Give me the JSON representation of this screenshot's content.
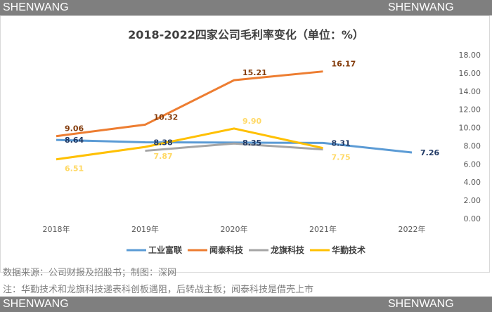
{
  "watermark": "SHENWANG",
  "chart_data": {
    "type": "line",
    "title": "2018-2022四家公司毛利率变化（单位：%）",
    "categories": [
      "2018年",
      "2019年",
      "2020年",
      "2021年",
      "2022年"
    ],
    "ylim": [
      0,
      18
    ],
    "yticks": [
      "0.00",
      "2.00",
      "4.00",
      "6.00",
      "8.00",
      "10.00",
      "12.00",
      "14.00",
      "16.00",
      "18.00"
    ],
    "y_axis_position": "right",
    "grid": false,
    "legend": "bottom",
    "series": [
      {
        "name": "工业富联",
        "color": "#5b9bd5",
        "labelColor": "#1f3864",
        "values": [
          8.64,
          8.38,
          8.35,
          8.31,
          7.26
        ],
        "labels": true
      },
      {
        "name": "闻泰科技",
        "color": "#ed7d31",
        "labelColor": "#843c0c",
        "values": [
          9.06,
          10.32,
          15.21,
          16.17,
          null
        ],
        "labels": true
      },
      {
        "name": "龙旗科技",
        "color": "#a5a5a5",
        "labelColor": "#7f7f7f",
        "values": [
          null,
          7.45,
          8.25,
          7.6,
          null
        ],
        "labels": false
      },
      {
        "name": "华勤技术",
        "color": "#ffc000",
        "labelColor": "#ffd966",
        "values": [
          6.51,
          7.87,
          9.9,
          7.75,
          null
        ],
        "labels": true
      }
    ]
  },
  "notes": {
    "source": "数据来源：公司财报及招股书；制图：深网",
    "remark": "注：华勤技术和龙旗科技递表科创板遇阻，后转战主板；闻泰科技是借壳上市"
  }
}
